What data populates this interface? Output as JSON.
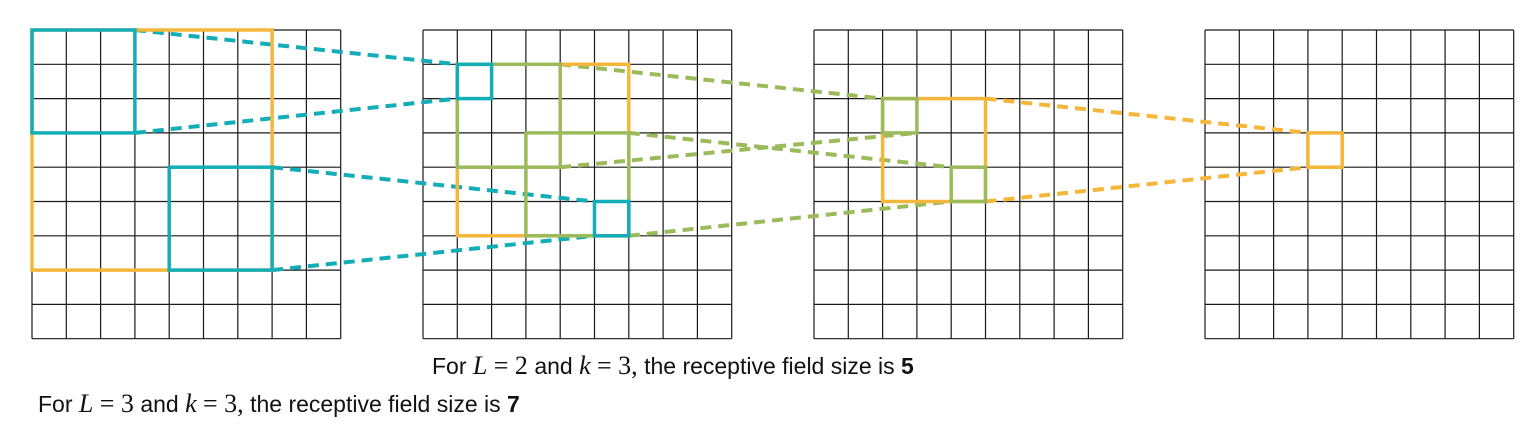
{
  "colors": {
    "grid": "#1a1a1a",
    "teal": "#13adb8",
    "orange": "#f5b73b",
    "green": "#9bbb5b"
  },
  "captions": {
    "caption_1": {
      "prefix": "For",
      "var_L": "L",
      "eq_1": "= 2",
      "and": "and",
      "var_k": "k",
      "eq_2": "= 3,",
      "suffix": "the receptive field size is",
      "value": "5"
    },
    "caption_2": {
      "prefix": "For",
      "var_L": "L",
      "eq_1": "= 3",
      "and": "and",
      "var_k": "k",
      "eq_2": "= 3,",
      "suffix": "the receptive field size is",
      "value": "7"
    }
  }
}
